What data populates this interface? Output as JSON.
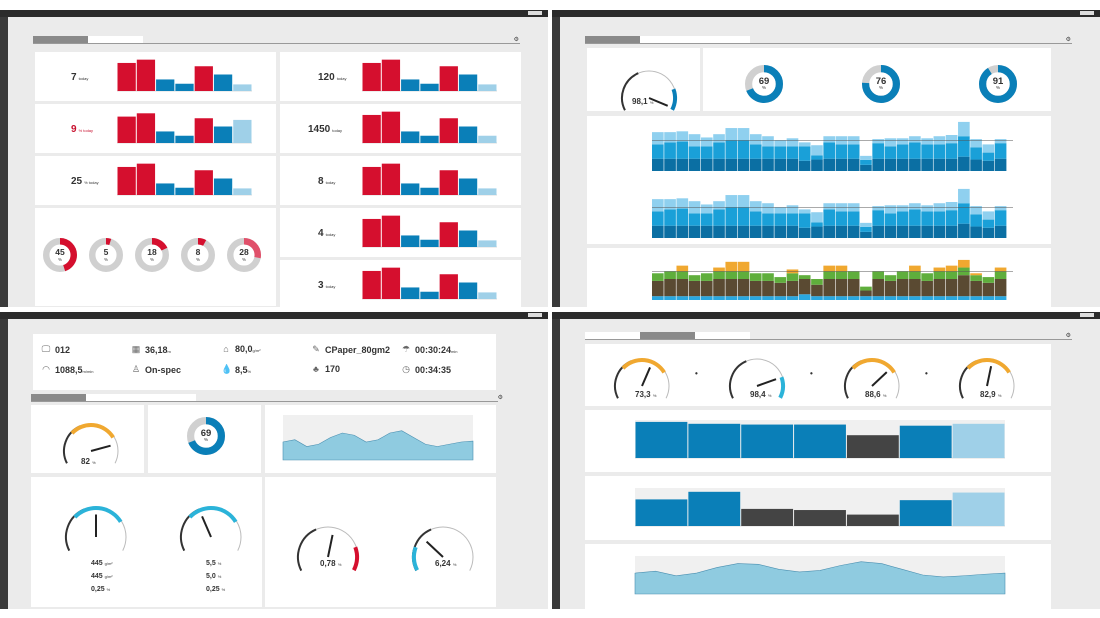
{
  "colors": {
    "red": "#d50f2e",
    "blue": "#0a7fb8",
    "light_blue": "#9fd0e8",
    "gray": "#cfcfcf",
    "orange": "#f0a830",
    "dark": "#444444",
    "teal": "#2bb3d9",
    "brown": "#5a4a32",
    "green": "#5fae3c",
    "area": "#8fcbe0"
  },
  "alarms_dashboard": {
    "kpis_left": [
      {
        "value": "7",
        "unit": "today",
        "bars": [
          85,
          95,
          35,
          22,
          75,
          50,
          20
        ]
      },
      {
        "value": "9",
        "unit": "% today",
        "highlight": true,
        "bars": [
          80,
          90,
          35,
          22,
          75,
          50,
          70
        ]
      },
      {
        "value": "25",
        "unit": "% today",
        "bars": [
          85,
          95,
          35,
          22,
          75,
          50,
          20
        ]
      }
    ],
    "kpis_right": [
      {
        "value": "120",
        "unit": "today",
        "bars": [
          85,
          95,
          35,
          22,
          75,
          50,
          20
        ]
      },
      {
        "value": "1450",
        "unit": "today",
        "bars": [
          85,
          95,
          35,
          22,
          75,
          50,
          22
        ]
      },
      {
        "value": "8",
        "unit": "today",
        "bars": [
          85,
          95,
          35,
          22,
          75,
          50,
          20
        ]
      },
      {
        "value": "4",
        "unit": "today",
        "bars": [
          85,
          95,
          35,
          22,
          75,
          50,
          20
        ]
      },
      {
        "value": "3",
        "unit": "today",
        "bars": [
          85,
          95,
          35,
          22,
          75,
          50,
          20
        ]
      }
    ],
    "bar_colors": [
      "red",
      "red",
      "blue",
      "blue",
      "red",
      "blue",
      "light_blue"
    ],
    "priority_donuts": [
      {
        "value": "45",
        "pct": 45
      },
      {
        "value": "5",
        "pct": 5
      },
      {
        "value": "18",
        "pct": 18
      },
      {
        "value": "8",
        "pct": 8
      },
      {
        "value": "28",
        "pct": 28
      }
    ],
    "donut_unit": "%",
    "unit_today": "today"
  },
  "production_dashboard": {
    "plant_efficiency": {
      "value": "98,1",
      "unit": "%",
      "fraction": 0.981
    },
    "availability_donuts": [
      {
        "value": "69",
        "pct": 69
      },
      {
        "value": "76",
        "pct": 76
      },
      {
        "value": "91",
        "pct": 91
      }
    ],
    "daily_production": {
      "type": "bar",
      "stacked": true,
      "target_line": true,
      "series": [
        [
          30,
          30,
          30,
          30,
          30,
          30,
          30,
          30,
          30,
          30,
          30,
          30,
          25,
          28,
          30,
          30,
          30,
          15,
          30,
          30,
          30,
          30,
          30,
          30,
          30,
          35,
          28,
          25,
          30
        ],
        [
          35,
          40,
          42,
          30,
          30,
          40,
          45,
          45,
          35,
          30,
          30,
          30,
          35,
          10,
          40,
          35,
          35,
          12,
          38,
          30,
          35,
          40,
          35,
          35,
          38,
          50,
          30,
          20,
          38
        ],
        [
          30,
          25,
          25,
          30,
          22,
          20,
          30,
          30,
          25,
          25,
          15,
          20,
          10,
          25,
          15,
          20,
          20,
          10,
          10,
          20,
          15,
          15,
          15,
          20,
          20,
          35,
          20,
          20,
          10
        ]
      ]
    },
    "daily_consumption": {
      "type": "bar",
      "stacked": true,
      "series": [
        [
          10,
          10,
          10,
          10,
          10,
          10,
          10,
          10,
          10,
          10,
          10,
          10,
          15,
          10,
          10,
          10,
          10,
          10,
          10,
          10,
          10,
          10,
          10,
          10,
          10,
          10,
          10,
          10,
          10
        ],
        [
          40,
          45,
          45,
          40,
          40,
          45,
          45,
          45,
          40,
          40,
          35,
          40,
          40,
          30,
          45,
          45,
          45,
          15,
          45,
          40,
          45,
          45,
          40,
          45,
          45,
          55,
          40,
          35,
          45
        ],
        [
          20,
          20,
          20,
          15,
          20,
          20,
          20,
          20,
          20,
          20,
          15,
          20,
          10,
          15,
          20,
          20,
          20,
          10,
          20,
          15,
          20,
          20,
          20,
          20,
          20,
          20,
          15,
          15,
          20
        ],
        [
          0,
          0,
          15,
          0,
          0,
          10,
          25,
          25,
          0,
          0,
          0,
          10,
          0,
          0,
          15,
          15,
          0,
          0,
          0,
          0,
          0,
          15,
          0,
          10,
          15,
          20,
          5,
          0,
          10
        ]
      ]
    }
  },
  "quality_dashboard": {
    "general_info": [
      {
        "icon": "monitor-icon",
        "glyph": "🖵",
        "value": "012",
        "unit": ""
      },
      {
        "icon": "speed-icon",
        "glyph": "◠",
        "value": "1088,5",
        "unit": "m/min"
      },
      {
        "icon": "reel-icon",
        "glyph": "▦",
        "value": "36,18",
        "unit": "m"
      },
      {
        "icon": "quality-icon",
        "glyph": "♙",
        "value": "On-spec",
        "unit": ""
      },
      {
        "icon": "weight-icon",
        "glyph": "⌂",
        "value": "80,0",
        "unit": "g/m²"
      },
      {
        "icon": "moisture-icon",
        "glyph": "💧",
        "value": "8,5",
        "unit": "%"
      },
      {
        "icon": "grade-icon",
        "glyph": "✎",
        "value": "CPaper_80gm2",
        "unit": ""
      },
      {
        "icon": "tree-icon",
        "glyph": "♣",
        "value": "170",
        "unit": ""
      },
      {
        "icon": "time-icon",
        "glyph": "☂",
        "value": "00:30:24",
        "unit": "min"
      },
      {
        "icon": "timer-icon",
        "glyph": "◷",
        "value": "00:34:35",
        "unit": ""
      }
    ],
    "overall_quality": {
      "value": "82",
      "unit": "%",
      "fraction": 0.82
    },
    "spec_donut": {
      "value": "69",
      "pct": 69
    },
    "trend": {
      "values": [
        40,
        45,
        30,
        35,
        50,
        60,
        55,
        40,
        45,
        60,
        65,
        50,
        35,
        30,
        35,
        40,
        42
      ]
    },
    "md_gauges": [
      {
        "fraction": 0.5,
        "rows": [
          {
            "v": "445",
            "u": "g/m²"
          },
          {
            "v": "445",
            "u": "g/m²"
          },
          {
            "v": "0,25",
            "u": "%"
          }
        ]
      },
      {
        "fraction": 0.4,
        "rows": [
          {
            "v": "5,5",
            "u": "%"
          },
          {
            "v": "5,0",
            "u": "%"
          },
          {
            "v": "0,25",
            "u": "%"
          }
        ]
      }
    ],
    "cd_gauges": [
      {
        "value": "0,78",
        "unit": "%",
        "fraction": 0.55,
        "band": "red"
      },
      {
        "value": "6,24",
        "unit": "%",
        "fraction": 0.3,
        "band": "teal"
      }
    ]
  },
  "oee_dashboard": {
    "gauges": [
      {
        "value": "73,3",
        "unit": "%",
        "fraction": 0.6,
        "band": "orange"
      },
      {
        "value": "98,4",
        "unit": "%",
        "fraction": 0.8,
        "band": "teal"
      },
      {
        "value": "88,6",
        "unit": "%",
        "fraction": 0.7,
        "band": "orange"
      },
      {
        "value": "82,9",
        "unit": "%",
        "fraction": 0.55,
        "band": "orange"
      }
    ],
    "operator": "•",
    "availability": {
      "type": "bar",
      "values": [
        95,
        90,
        88,
        88,
        60,
        85,
        90
      ],
      "colors": [
        "blue",
        "blue",
        "blue",
        "blue",
        "dark",
        "blue",
        "light_blue"
      ]
    },
    "production": {
      "type": "bar",
      "values": [
        70,
        90,
        45,
        42,
        30,
        68,
        88
      ],
      "colors": [
        "blue",
        "blue",
        "dark",
        "dark",
        "dark",
        "blue",
        "light_blue"
      ]
    },
    "quality": {
      "type": "area",
      "values": [
        55,
        60,
        48,
        55,
        70,
        80,
        78,
        65,
        58,
        62,
        75,
        85,
        80,
        65,
        50,
        45,
        48,
        52,
        55
      ]
    }
  }
}
